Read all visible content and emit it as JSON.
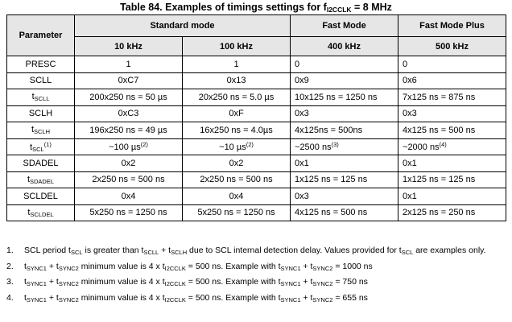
{
  "title": {
    "prefix": "Table 84. Examples of timings settings for f",
    "sub": "I2CCLK",
    "suffix": " = 8 MHz"
  },
  "header": {
    "parameter": "Parameter",
    "groups": [
      "Standard mode",
      "Fast Mode",
      "Fast Mode Plus"
    ],
    "freqs": [
      "10 kHz",
      "100 kHz",
      "400 kHz",
      "500 kHz"
    ]
  },
  "rows": [
    {
      "p": "PRESC",
      "v": [
        "1",
        "1",
        "0",
        "0"
      ]
    },
    {
      "p": "SCLL",
      "v": [
        "0xC7",
        "0x13",
        "0x9",
        "0x6"
      ]
    },
    {
      "p_main": "t",
      "p_sub": "SCLL",
      "v": [
        "200x250 ns = 50 µs",
        "20x250 ns = 5.0 µs",
        "10x125 ns = 1250 ns",
        "7x125 ns = 875 ns"
      ]
    },
    {
      "p": "SCLH",
      "v": [
        "0xC3",
        "0xF",
        "0x3",
        "0x3"
      ]
    },
    {
      "p_main": "t",
      "p_sub": "SCLH",
      "v": [
        "196x250 ns = 49 µs",
        "16x250 ns = 4.0µs",
        "4x125ns = 500ns",
        "4x125 ns = 500 ns"
      ]
    },
    {
      "p_main": "t",
      "p_sub": "SCL",
      "p_sup": "(1)",
      "v": [
        "~100 µs",
        "~10 µs",
        "~2500 ns",
        "~2000 ns"
      ],
      "sups": [
        "(2)",
        "(2)",
        "(3)",
        "(4)"
      ]
    },
    {
      "p": "SDADEL",
      "v": [
        "0x2",
        "0x2",
        "0x1",
        "0x1"
      ]
    },
    {
      "p_main": "t",
      "p_sub": "SDADEL",
      "v": [
        "2x250 ns = 500 ns",
        "2x250 ns = 500 ns",
        "1x125 ns = 125 ns",
        "1x125 ns = 125 ns"
      ]
    },
    {
      "p": "SCLDEL",
      "v": [
        "0x4",
        "0x4",
        "0x3",
        "0x1"
      ]
    },
    {
      "p_main": "t",
      "p_sub": "SCLDEL",
      "v": [
        "5x250 ns = 1250 ns",
        "5x250 ns = 1250 ns",
        "4x125 ns = 500 ns",
        "2x125 ns = 250 ns"
      ]
    }
  ],
  "notes": {
    "n1": {
      "num": "1.",
      "a": "SCL period t",
      "a_sub": "SCL",
      "b": " is greater than t",
      "b_sub": "SCLL",
      "c": " + t",
      "c_sub": "SCLH",
      "d": " due to SCL internal detection delay. Values provided for t",
      "d_sub": "SCL",
      "e": " are examples only."
    },
    "n2": {
      "num": "2.",
      "a": "t",
      "s1": "SYNC1",
      "b": " + t",
      "s2": "SYNC2",
      "c": " minimum value is 4 x t",
      "s3": "I2CCLK",
      "d": " = 500 ns. Example with t",
      "s4": "SYNC1",
      "e": " + t",
      "s5": "SYNC2",
      "f": " = 1000 ns"
    },
    "n3": {
      "num": "3.",
      "a": "t",
      "s1": "SYNC1",
      "b": " + t",
      "s2": "SYNC2",
      "c": " minimum value is 4 x t",
      "s3": "I2CCLK",
      "d": " = 500 ns. Example with t",
      "s4": "SYNC1",
      "e": " + t",
      "s5": "SYNC2",
      "f": " = 750 ns"
    },
    "n4": {
      "num": "4.",
      "a": "t",
      "s1": "SYNC1",
      "b": " + t",
      "s2": "SYNC2",
      "c": " minimum value is 4 x t",
      "s3": "I2CCLK",
      "d": " = 500 ns. Example with t",
      "s4": "SYNC1",
      "e": " + t",
      "s5": "SYNC2",
      "f": " = 655 ns"
    }
  }
}
